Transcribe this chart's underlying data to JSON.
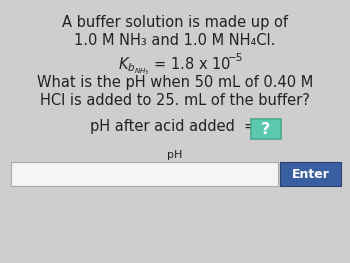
{
  "bg_color": "#cecece",
  "title_line1": "A buffer solution is made up of",
  "title_line2": "1.0 M NH₃ and 1.0 M NH₄Cl.",
  "question_line1": "What is the pH when 50 mL of 0.40 M",
  "question_line2": "HCl is added to 25. mL of the buffer?",
  "answer_prefix": "pH after acid added  = ",
  "answer_box_text": "?",
  "answer_box_bg": "#5bc8b0",
  "answer_box_border": "#4aaa90",
  "answer_box_text_color": "#ffffff",
  "input_label": "pH",
  "input_box_color": "#f5f5f5",
  "input_box_border": "#aaaaaa",
  "enter_button_color": "#3a5fa0",
  "enter_button_text": "Enter",
  "enter_button_text_color": "#ffffff",
  "main_text_color": "#222222",
  "font_size_main": 10.5,
  "font_size_kb": 10.5,
  "font_size_small": 7.5,
  "font_size_input_label": 8.0,
  "font_size_enter": 9.0
}
